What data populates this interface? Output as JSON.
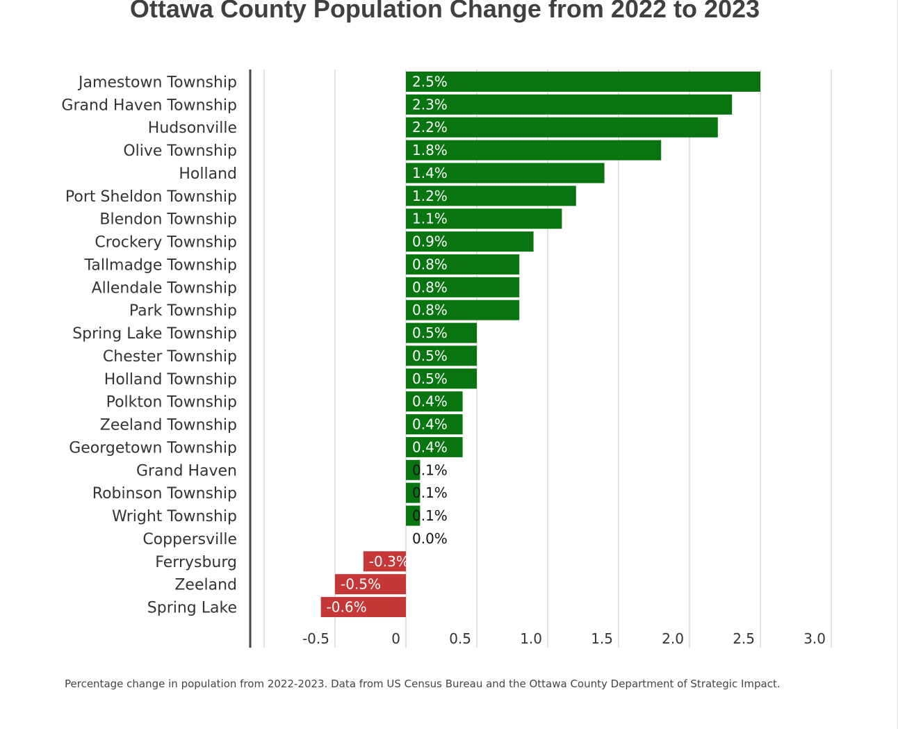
{
  "chart_data": {
    "type": "bar",
    "orientation": "horizontal",
    "title": "Ottawa County Population Change from 2022 to 2023",
    "categories": [
      "Jamestown Township",
      "Grand Haven Township",
      "Hudsonville",
      "Olive Township",
      "Holland",
      "Port Sheldon Township",
      "Blendon Township",
      "Crockery Township",
      "Tallmadge Township",
      "Allendale Township",
      "Park Township",
      "Spring Lake Township",
      "Chester Township",
      "Holland Township",
      "Polkton Township",
      "Zeeland Township",
      "Georgetown Township",
      "Grand Haven",
      "Robinson Township",
      "Wright Township",
      "Coppersville",
      "Ferrysburg",
      "Zeeland",
      "Spring Lake"
    ],
    "values": [
      2.5,
      2.3,
      2.2,
      1.8,
      1.4,
      1.2,
      1.1,
      0.9,
      0.8,
      0.8,
      0.8,
      0.5,
      0.5,
      0.5,
      0.4,
      0.4,
      0.4,
      0.1,
      0.1,
      0.1,
      0.0,
      -0.3,
      -0.5,
      -0.6
    ],
    "data_labels": [
      "2.5%",
      "2.3%",
      "2.2%",
      "1.8%",
      "1.4%",
      "1.2%",
      "1.1%",
      "0.9%",
      "0.8%",
      "0.8%",
      "0.8%",
      "0.5%",
      "0.5%",
      "0.5%",
      "0.4%",
      "0.4%",
      "0.4%",
      "0.1%",
      "0.1%",
      "0.1%",
      "0.0%",
      "-0.3%",
      "-0.5%",
      "-0.6%"
    ],
    "xlim": [
      -1.0,
      3.0
    ],
    "xticks": [
      -0.5,
      0,
      0.5,
      1.0,
      1.5,
      2.0,
      2.5,
      3.0
    ],
    "xtick_labels": [
      "-0.5",
      "0",
      "0.5",
      "1.0",
      "1.5",
      "2.0",
      "2.5",
      "3.0"
    ],
    "grid": true,
    "xlabel": "",
    "ylabel": "",
    "colors": {
      "positive": "#087511",
      "negative": "#c63737",
      "grid": "#d9d9d9",
      "axis": "#444444",
      "label_inside": "#ffffff",
      "label_outside": "#111111",
      "category_text": "#333333"
    }
  },
  "caption": "Percentage change in population from 2022-2023. Data from US Census Bureau and the Ottawa County Department of Strategic Impact."
}
